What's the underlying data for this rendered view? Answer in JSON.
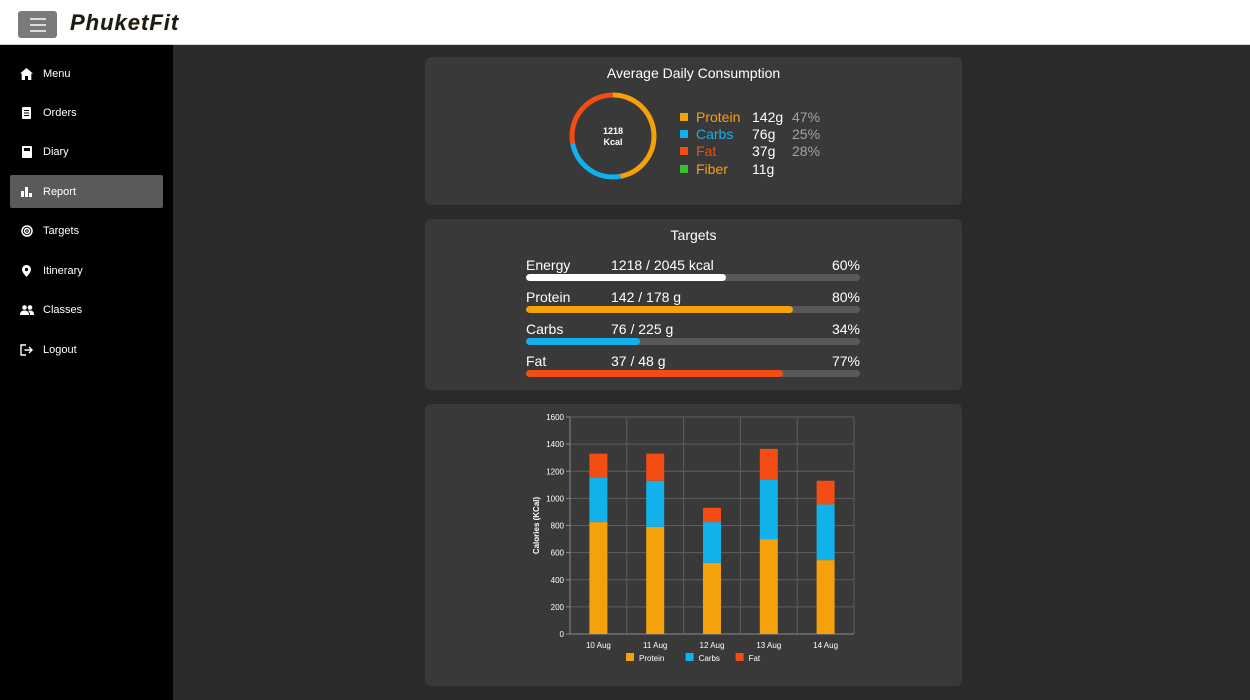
{
  "header": {
    "brand": "PhuketFit"
  },
  "sidebar": {
    "items": [
      {
        "label": "Menu",
        "icon": "home-icon",
        "active": false
      },
      {
        "label": "Orders",
        "icon": "document-icon",
        "active": false
      },
      {
        "label": "Diary",
        "icon": "book-icon",
        "active": false
      },
      {
        "label": "Report",
        "icon": "bar-chart-icon",
        "active": true
      },
      {
        "label": "Targets",
        "icon": "target-icon",
        "active": false
      },
      {
        "label": "Itinerary",
        "icon": "location-pin-icon",
        "active": false
      },
      {
        "label": "Classes",
        "icon": "people-icon",
        "active": false
      },
      {
        "label": "Logout",
        "icon": "logout-icon",
        "active": false
      }
    ]
  },
  "consumption": {
    "title": "Average Daily Consumption",
    "kcal_value": "1218",
    "kcal_unit": "Kcal",
    "macros": [
      {
        "name": "Protein",
        "grams": "142g",
        "pct": "47%",
        "color": "#f5a10a"
      },
      {
        "name": "Carbs",
        "grams": "76g",
        "pct": "25%",
        "color": "#13b1ec"
      },
      {
        "name": "Fat",
        "grams": "37g",
        "pct": "28%",
        "color": "#f34d14"
      },
      {
        "name": "Fiber",
        "grams": "11g",
        "pct": "",
        "color": "#34c22f"
      }
    ]
  },
  "targets": {
    "title": "Targets",
    "rows": [
      {
        "name": "Energy",
        "value": "1218 / 2045 kcal",
        "pct": "60%",
        "fraction": 0.6,
        "color": "#ffffff"
      },
      {
        "name": "Protein",
        "value": "142 / 178 g",
        "pct": "80%",
        "fraction": 0.8,
        "color": "#f5a10a"
      },
      {
        "name": "Carbs",
        "value": "76 / 225 g",
        "pct": "34%",
        "fraction": 0.34,
        "color": "#13b1ec"
      },
      {
        "name": "Fat",
        "value": "37 / 48 g",
        "pct": "77%",
        "fraction": 0.77,
        "color": "#f34d14"
      }
    ]
  },
  "chart_data": {
    "type": "bar",
    "stacked": true,
    "categories": [
      "10 Aug",
      "11 Aug",
      "12 Aug",
      "13 Aug",
      "14 Aug"
    ],
    "series": [
      {
        "name": "Protein",
        "values": [
          825,
          790,
          525,
          700,
          545
        ],
        "color": "#f5a10a"
      },
      {
        "name": "Carbs",
        "values": [
          330,
          340,
          300,
          440,
          410
        ],
        "color": "#13b1ec"
      },
      {
        "name": "Fat",
        "values": [
          175,
          200,
          105,
          225,
          175
        ],
        "color": "#f34d14"
      }
    ],
    "ylabel": "Calories (KCal)",
    "xlabel": "",
    "ylim": [
      0,
      1600
    ],
    "yticks": [
      0,
      200,
      400,
      600,
      800,
      1000,
      1200,
      1400,
      1600
    ],
    "grid": true,
    "legend_position": "bottom"
  }
}
